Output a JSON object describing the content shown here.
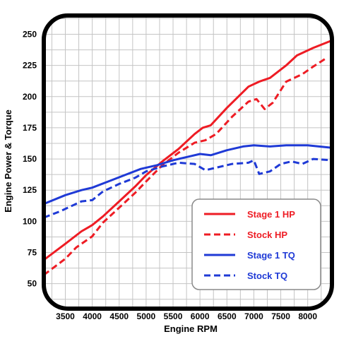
{
  "chart_data": {
    "type": "line",
    "title": "",
    "xlabel": "Engine RPM",
    "ylabel": "Engine Power & Torque",
    "xlim": [
      3100,
      8450
    ],
    "ylim": [
      30,
      265
    ],
    "xticks": [
      3500,
      4000,
      4500,
      5000,
      5500,
      6000,
      6500,
      7000,
      7500,
      8000
    ],
    "xtick_labels": [
      "3500",
      "4000",
      "4500",
      "5000",
      "5500",
      "6000",
      "6500",
      "7000",
      "7500",
      "8000"
    ],
    "yticks": [
      50,
      75,
      100,
      125,
      150,
      175,
      200,
      225,
      250
    ],
    "ytick_labels": [
      "50",
      "75",
      "100",
      "125",
      "150",
      "175",
      "200",
      "225",
      "250"
    ],
    "grid": true,
    "legend_position": "bottom-right",
    "series": [
      {
        "name": "Stage 1 HP",
        "color": "#ee1c24",
        "dash": "solid",
        "x": [
          3100,
          3500,
          3800,
          4000,
          4200,
          4500,
          4800,
          5000,
          5300,
          5600,
          5900,
          6050,
          6200,
          6500,
          6900,
          7100,
          7300,
          7600,
          7800,
          8100,
          8450
        ],
        "y": [
          69,
          82,
          92,
          97,
          104,
          116,
          128,
          137,
          148,
          158,
          170,
          175,
          177,
          191,
          208,
          212,
          215,
          225,
          233,
          239,
          245
        ]
      },
      {
        "name": "Stock HP",
        "color": "#ee1c24",
        "dash": "dashed",
        "x": [
          3100,
          3500,
          3700,
          4000,
          4200,
          4500,
          4800,
          5000,
          5300,
          5600,
          5900,
          6100,
          6300,
          6600,
          6900,
          7050,
          7200,
          7350,
          7600,
          7900,
          8100,
          8350
        ],
        "y": [
          57,
          70,
          79,
          88,
          99,
          111,
          123,
          132,
          145,
          155,
          163,
          165,
          170,
          184,
          196,
          198,
          190,
          195,
          212,
          218,
          224,
          231
        ]
      },
      {
        "name": "Stage 1 TQ",
        "color": "#1f3ad6",
        "dash": "solid",
        "x": [
          3100,
          3500,
          3800,
          4000,
          4300,
          4600,
          4900,
          5200,
          5500,
          5800,
          6000,
          6200,
          6500,
          6800,
          7000,
          7300,
          7600,
          8000,
          8450
        ],
        "y": [
          114,
          121,
          125,
          127,
          132,
          137,
          142,
          145,
          149,
          152,
          154,
          153,
          157,
          160,
          161,
          160,
          161,
          161,
          159
        ]
      },
      {
        "name": "Stock TQ",
        "color": "#1f3ad6",
        "dash": "dashed",
        "x": [
          3100,
          3400,
          3800,
          4000,
          4200,
          4500,
          4800,
          5000,
          5300,
          5600,
          5900,
          6100,
          6300,
          6600,
          6900,
          7000,
          7100,
          7300,
          7500,
          7700,
          7900,
          8100,
          8450
        ],
        "y": [
          103,
          108,
          116,
          117,
          124,
          130,
          135,
          140,
          144,
          147,
          146,
          141,
          143,
          146,
          147,
          149,
          138,
          140,
          146,
          148,
          146,
          150,
          149
        ]
      }
    ]
  }
}
